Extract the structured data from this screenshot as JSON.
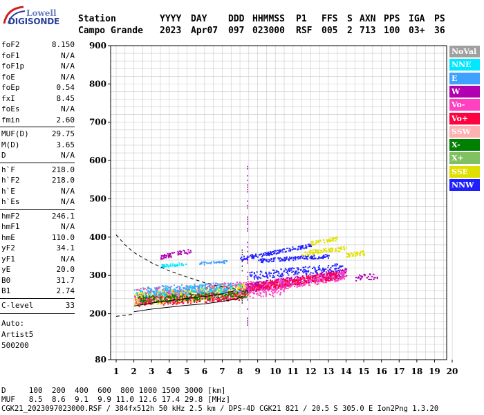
{
  "logo": {
    "line1": "Lowell",
    "line2": "DIGISONDE"
  },
  "header": {
    "row1": [
      {
        "text": "Station",
        "x": 113
      },
      {
        "text": "YYYY",
        "x": 231
      },
      {
        "text": "DAY",
        "x": 276
      },
      {
        "text": "DDD",
        "x": 330
      },
      {
        "text": "HHMMSS",
        "x": 365
      },
      {
        "text": "P1",
        "x": 428
      },
      {
        "text": "FFS",
        "x": 465
      },
      {
        "text": "S",
        "x": 502
      },
      {
        "text": "AXN",
        "x": 520
      },
      {
        "text": "PPS",
        "x": 555
      },
      {
        "text": "IGA",
        "x": 591
      },
      {
        "text": "PS",
        "x": 628
      }
    ],
    "row2": [
      {
        "text": "Campo Grande",
        "x": 113
      },
      {
        "text": "2023",
        "x": 231
      },
      {
        "text": "Apr07",
        "x": 276
      },
      {
        "text": "097",
        "x": 330
      },
      {
        "text": "023000",
        "x": 365
      },
      {
        "text": "RSF",
        "x": 428
      },
      {
        "text": "005",
        "x": 465
      },
      {
        "text": "2",
        "x": 502
      },
      {
        "text": "713",
        "x": 520
      },
      {
        "text": "100",
        "x": 555
      },
      {
        "text": "03+",
        "x": 591
      },
      {
        "text": "36",
        "x": 628
      }
    ]
  },
  "params": [
    {
      "k": "foF2",
      "v": "8.150"
    },
    {
      "k": "foF1",
      "v": "N/A"
    },
    {
      "k": "foF1p",
      "v": "N/A"
    },
    {
      "k": "foE",
      "v": "N/A"
    },
    {
      "k": "foEp",
      "v": "0.54"
    },
    {
      "k": "fxI",
      "v": "8.45"
    },
    {
      "k": "foEs",
      "v": "N/A"
    },
    {
      "k": "fmin",
      "v": "2.60"
    },
    {
      "k": "MUF(D)",
      "v": "29.75"
    },
    {
      "k": "M(D)",
      "v": "3.65"
    },
    {
      "k": "D",
      "v": "N/A"
    },
    {
      "k": "h`F",
      "v": "218.0"
    },
    {
      "k": "h`F2",
      "v": "218.0"
    },
    {
      "k": "h`E",
      "v": "N/A"
    },
    {
      "k": "h`Es",
      "v": "N/A"
    },
    {
      "k": "hmF2",
      "v": "246.1"
    },
    {
      "k": "hmF1",
      "v": "N/A"
    },
    {
      "k": "hmE",
      "v": "110.0"
    },
    {
      "k": "yF2",
      "v": "34.1"
    },
    {
      "k": "yF1",
      "v": "N/A"
    },
    {
      "k": "yE",
      "v": "20.0"
    },
    {
      "k": "B0",
      "v": "31.7"
    },
    {
      "k": "B1",
      "v": "2.74"
    },
    {
      "k": "C-level",
      "v": "33"
    }
  ],
  "autoscale": {
    "line1": "Auto:",
    "line2": "Artist5",
    "line3": "500200"
  },
  "legend": [
    {
      "label": "NoVal",
      "color": "#a0a0a0",
      "text": "#ffffff"
    },
    {
      "label": "NNE",
      "color": "#00e8ff",
      "text": "#ffffff"
    },
    {
      "label": "E",
      "color": "#3fa0ff",
      "text": "#ffffff"
    },
    {
      "label": "W",
      "color": "#b000b0",
      "text": "#ffffff"
    },
    {
      "label": "Vo-",
      "color": "#ff40c0",
      "text": "#ffffff"
    },
    {
      "label": "Vo+",
      "color": "#ff0040",
      "text": "#ffffff"
    },
    {
      "label": "SSW",
      "color": "#ffb0b0",
      "text": "#ffffff"
    },
    {
      "label": "X-",
      "color": "#008000",
      "text": "#ffffff"
    },
    {
      "label": "X+",
      "color": "#80c060",
      "text": "#ffffff"
    },
    {
      "label": "SSE",
      "color": "#e0e000",
      "text": "#ffffff"
    },
    {
      "label": "NNW",
      "color": "#2020ff",
      "text": "#ffffff"
    }
  ],
  "footer": {
    "line1": "D     100  200  400  600  800 1000 1500 3000 [km]",
    "line2": "MUF   8.5  8.6  9.1  9.9 11.0 12.6 17.4 29.8 [MHz]",
    "line3": "CGK21_2023097023000.RSF / 384fx512h 50 kHz 2.5 km / DPS-4D CGK21 821 / 20.5 S 305.0 E Ion2Png 1.3.20"
  },
  "chart_data": {
    "type": "scatter",
    "title": "",
    "xlabel": "",
    "ylabel": "",
    "x_range": [
      1,
      20
    ],
    "y_range": [
      80,
      900
    ],
    "x_ticks": [
      1,
      2,
      3,
      4,
      5,
      6,
      7,
      8,
      9,
      10,
      11,
      12,
      13,
      14,
      15,
      16,
      17,
      18,
      19,
      20
    ],
    "y_ticks": [
      80,
      200,
      300,
      400,
      500,
      600,
      700,
      800,
      900
    ],
    "grid": true,
    "legend_placement": "right",
    "traces": [
      {
        "color": "#e0e000",
        "from": [
          2.0,
          240
        ],
        "to": [
          8.5,
          262
        ],
        "spread": 18,
        "n": 700
      },
      {
        "color": "#ff40c0",
        "from": [
          2.0,
          245
        ],
        "to": [
          10.5,
          270
        ],
        "spread": 22,
        "n": 500
      },
      {
        "color": "#ff0040",
        "from": [
          2.2,
          232
        ],
        "to": [
          8.3,
          250
        ],
        "spread": 12,
        "n": 250
      },
      {
        "color": "#008000",
        "from": [
          2.2,
          238
        ],
        "to": [
          8.4,
          252
        ],
        "spread": 10,
        "n": 200
      },
      {
        "color": "#00e8ff",
        "from": [
          2.0,
          255
        ],
        "to": [
          8.0,
          270
        ],
        "spread": 12,
        "n": 160
      },
      {
        "color": "#3fa0ff",
        "from": [
          2.4,
          260
        ],
        "to": [
          7.5,
          272
        ],
        "spread": 12,
        "n": 120
      },
      {
        "color": "#b000b0",
        "from": [
          8.3,
          268
        ],
        "to": [
          14.0,
          308
        ],
        "spread": 12,
        "n": 420
      },
      {
        "color": "#ff40c0",
        "from": [
          8.3,
          262
        ],
        "to": [
          14.0,
          302
        ],
        "spread": 12,
        "n": 300
      },
      {
        "color": "#ff0040",
        "from": [
          8.5,
          270
        ],
        "to": [
          13.5,
          300
        ],
        "spread": 10,
        "n": 200
      },
      {
        "color": "#2020ff",
        "from": [
          8.5,
          300
        ],
        "to": [
          13.8,
          325
        ],
        "spread": 10,
        "n": 180
      },
      {
        "color": "#2020ff",
        "from": [
          8.0,
          345
        ],
        "to": [
          12.0,
          380
        ],
        "spread": 5,
        "n": 140
      },
      {
        "color": "#2020ff",
        "from": [
          9.0,
          340
        ],
        "to": [
          13.0,
          352
        ],
        "spread": 5,
        "n": 140
      },
      {
        "color": "#e0e000",
        "from": [
          11.5,
          360
        ],
        "to": [
          14.0,
          372
        ],
        "spread": 6,
        "n": 90
      },
      {
        "color": "#e0e000",
        "from": [
          12.0,
          385
        ],
        "to": [
          13.5,
          398
        ],
        "spread": 5,
        "n": 50
      },
      {
        "color": "#b000b0",
        "from": [
          3.5,
          350
        ],
        "to": [
          5.2,
          365
        ],
        "spread": 6,
        "n": 60
      },
      {
        "color": "#00e8ff",
        "from": [
          3.4,
          325
        ],
        "to": [
          5.0,
          332
        ],
        "spread": 4,
        "n": 40
      },
      {
        "color": "#3fa0ff",
        "from": [
          5.7,
          332
        ],
        "to": [
          7.3,
          337
        ],
        "spread": 4,
        "n": 40
      },
      {
        "color": "#e0e000",
        "from": [
          14.0,
          355
        ],
        "to": [
          15.0,
          360
        ],
        "spread": 6,
        "n": 40
      },
      {
        "color": "#b000b0",
        "from": [
          14.5,
          295
        ],
        "to": [
          15.8,
          300
        ],
        "spread": 8,
        "n": 30
      }
    ],
    "vertical_strokes": [
      {
        "x": 8.4,
        "y1": 160,
        "y2": 600,
        "color": "#b000b0"
      },
      {
        "x": 8.1,
        "y1": 230,
        "y2": 370,
        "color": "#404040"
      }
    ],
    "profile_curve": [
      [
        2.0,
        205
      ],
      [
        3.0,
        212
      ],
      [
        4.0,
        217
      ],
      [
        5.0,
        222
      ],
      [
        6.0,
        226
      ],
      [
        7.0,
        232
      ],
      [
        7.8,
        238
      ],
      [
        8.15,
        246
      ]
    ],
    "profile_upper": [
      [
        2.0,
        220
      ],
      [
        3.0,
        228
      ],
      [
        4.0,
        234
      ],
      [
        5.0,
        240
      ],
      [
        6.0,
        245
      ],
      [
        7.0,
        252
      ],
      [
        7.7,
        260
      ]
    ],
    "muf_curve": [
      [
        1.0,
        406
      ],
      [
        1.5,
        380
      ],
      [
        2.0,
        360
      ],
      [
        3.0,
        333
      ],
      [
        4.0,
        312
      ],
      [
        5.0,
        296
      ],
      [
        6.0,
        281
      ],
      [
        7.0,
        270
      ],
      [
        8.0,
        262
      ],
      [
        8.5,
        258
      ]
    ],
    "lower_dashed": [
      [
        1.0,
        193
      ],
      [
        1.5,
        196
      ],
      [
        2.0,
        199
      ]
    ]
  }
}
